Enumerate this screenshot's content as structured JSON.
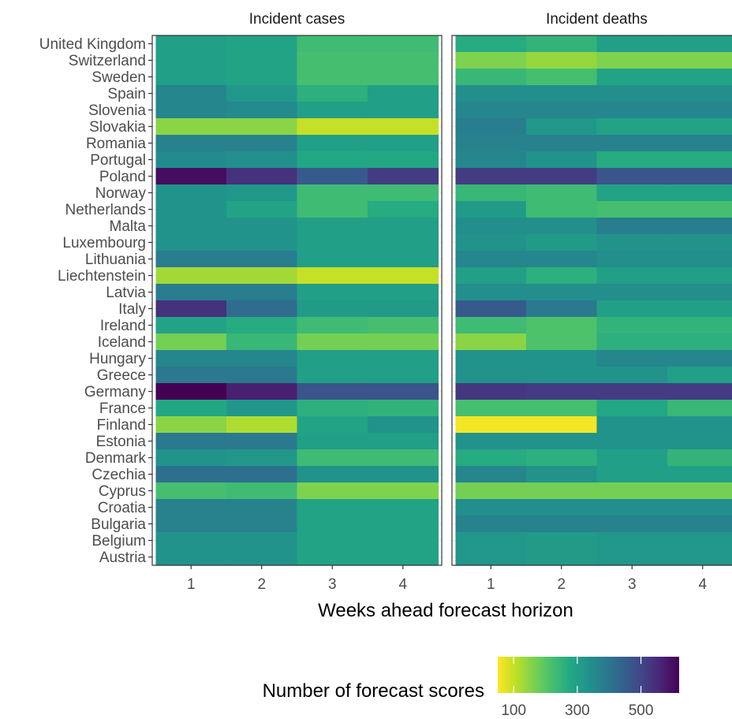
{
  "chart_data": {
    "type": "heatmap",
    "xlabel": "Weeks ahead forecast horizon",
    "x_categories": [
      "1",
      "2",
      "3",
      "4"
    ],
    "y_categories": [
      "United Kingdom",
      "Switzerland",
      "Sweden",
      "Spain",
      "Slovenia",
      "Slovakia",
      "Romania",
      "Portugal",
      "Poland",
      "Norway",
      "Netherlands",
      "Malta",
      "Luxembourg",
      "Lithuania",
      "Liechtenstein",
      "Latvia",
      "Italy",
      "Ireland",
      "Iceland",
      "Hungary",
      "Greece",
      "Germany",
      "France",
      "Finland",
      "Estonia",
      "Denmark",
      "Czechia",
      "Cyprus",
      "Croatia",
      "Bulgaria",
      "Belgium",
      "Austria"
    ],
    "panels": [
      {
        "title": "Incident cases",
        "values": [
          [
            300,
            290,
            230,
            230
          ],
          [
            300,
            290,
            220,
            220
          ],
          [
            300,
            290,
            220,
            220
          ],
          [
            360,
            320,
            260,
            300
          ],
          [
            360,
            350,
            300,
            300
          ],
          [
            150,
            150,
            100,
            100
          ],
          [
            370,
            370,
            300,
            300
          ],
          [
            350,
            340,
            280,
            280
          ],
          [
            600,
            540,
            460,
            520
          ],
          [
            330,
            320,
            230,
            230
          ],
          [
            330,
            290,
            230,
            270
          ],
          [
            330,
            330,
            300,
            300
          ],
          [
            330,
            330,
            300,
            300
          ],
          [
            380,
            380,
            300,
            300
          ],
          [
            130,
            130,
            100,
            100
          ],
          [
            380,
            380,
            300,
            300
          ],
          [
            540,
            420,
            310,
            310
          ],
          [
            290,
            270,
            230,
            220
          ],
          [
            170,
            240,
            170,
            170
          ],
          [
            360,
            360,
            300,
            300
          ],
          [
            390,
            390,
            300,
            300
          ],
          [
            620,
            570,
            470,
            470
          ],
          [
            280,
            320,
            260,
            250
          ],
          [
            150,
            120,
            290,
            330
          ],
          [
            390,
            390,
            300,
            300
          ],
          [
            330,
            320,
            230,
            230
          ],
          [
            410,
            410,
            330,
            330
          ],
          [
            220,
            230,
            160,
            160
          ],
          [
            370,
            370,
            290,
            290
          ],
          [
            370,
            370,
            290,
            290
          ],
          [
            330,
            330,
            290,
            290
          ],
          [
            330,
            330,
            290,
            290
          ]
        ]
      },
      {
        "title": "Incident deaths",
        "values": [
          [
            270,
            250,
            300,
            300
          ],
          [
            160,
            140,
            160,
            160
          ],
          [
            240,
            220,
            290,
            290
          ],
          [
            340,
            340,
            340,
            340
          ],
          [
            360,
            360,
            360,
            360
          ],
          [
            380,
            320,
            290,
            290
          ],
          [
            370,
            370,
            370,
            370
          ],
          [
            360,
            330,
            270,
            270
          ],
          [
            520,
            520,
            470,
            470
          ],
          [
            240,
            230,
            290,
            290
          ],
          [
            310,
            230,
            220,
            220
          ],
          [
            340,
            340,
            380,
            380
          ],
          [
            330,
            310,
            330,
            330
          ],
          [
            360,
            360,
            340,
            340
          ],
          [
            300,
            260,
            300,
            300
          ],
          [
            340,
            340,
            340,
            340
          ],
          [
            460,
            390,
            300,
            300
          ],
          [
            230,
            210,
            250,
            250
          ],
          [
            150,
            210,
            260,
            260
          ],
          [
            330,
            330,
            360,
            360
          ],
          [
            330,
            330,
            330,
            300
          ],
          [
            530,
            520,
            520,
            520
          ],
          [
            220,
            220,
            280,
            240
          ],
          [
            60,
            60,
            330,
            330
          ],
          [
            330,
            330,
            330,
            330
          ],
          [
            270,
            260,
            300,
            250
          ],
          [
            360,
            330,
            300,
            300
          ],
          [
            170,
            170,
            170,
            170
          ],
          [
            340,
            340,
            340,
            340
          ],
          [
            370,
            370,
            370,
            370
          ],
          [
            320,
            310,
            320,
            320
          ],
          [
            320,
            310,
            320,
            320
          ]
        ]
      }
    ],
    "legend": {
      "title": "Number of forecast scores",
      "ticks": [
        "100",
        "300",
        "500"
      ],
      "tick_values": [
        100,
        300,
        500
      ],
      "range": [
        50,
        620
      ],
      "colormap": "viridis",
      "direction": "reversed",
      "placement": "bottom"
    }
  }
}
